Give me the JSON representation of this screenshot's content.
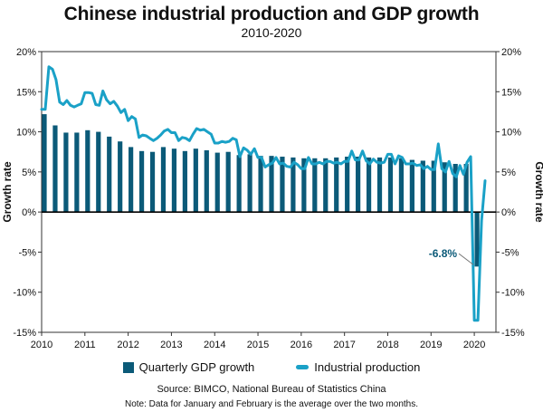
{
  "title": "Chinese industrial production and GDP growth",
  "subtitle": "2010-2020",
  "source": "Source: BIMCO, National Bureau of Statistics China",
  "note": "Note: Data for January and February is the average over the two months.",
  "colors": {
    "gdp": "#0b5a78",
    "industrial": "#1aa1c7",
    "callout": "#0b5a78"
  },
  "chart_data": {
    "type": "bar+line",
    "title": "Chinese industrial production and GDP growth",
    "subtitle": "2010-2020",
    "xlabel": "",
    "ylabel_left": "Growth rate",
    "ylabel_right": "Growth rate",
    "ylim": [
      -15,
      20
    ],
    "xlim": [
      2010,
      2020.5
    ],
    "y_ticks": [
      20,
      15,
      10,
      5,
      0,
      -5,
      -10,
      -15
    ],
    "y_tick_labels": [
      "20%",
      "15%",
      "10%",
      "5%",
      "0%",
      "-5%",
      "-10%",
      "-15%"
    ],
    "x_ticks": [
      2010,
      2011,
      2012,
      2013,
      2014,
      2015,
      2016,
      2017,
      2018,
      2019,
      2020
    ],
    "x_tick_labels": [
      "2010",
      "2011",
      "2012",
      "2013",
      "2014",
      "2015",
      "2016",
      "2017",
      "2018",
      "2019",
      "2020"
    ],
    "legend": {
      "placement": "bottom",
      "entries": [
        "Quarterly GDP growth",
        "Industrial production"
      ]
    },
    "annotation": {
      "text": "-6.8%",
      "x": 2020.0,
      "y": -6.8
    },
    "series": [
      {
        "name": "Quarterly GDP growth",
        "type": "bar",
        "x": [
          2010.0,
          2010.25,
          2010.5,
          2010.75,
          2011.0,
          2011.25,
          2011.5,
          2011.75,
          2012.0,
          2012.25,
          2012.5,
          2012.75,
          2013.0,
          2013.25,
          2013.5,
          2013.75,
          2014.0,
          2014.25,
          2014.5,
          2014.75,
          2015.0,
          2015.25,
          2015.5,
          2015.75,
          2016.0,
          2016.25,
          2016.5,
          2016.75,
          2017.0,
          2017.25,
          2017.5,
          2017.75,
          2018.0,
          2018.25,
          2018.5,
          2018.75,
          2019.0,
          2019.25,
          2019.5,
          2019.75,
          2020.0
        ],
        "values": [
          12.2,
          10.8,
          9.9,
          9.9,
          10.2,
          10.0,
          9.4,
          8.8,
          8.1,
          7.6,
          7.5,
          8.1,
          7.9,
          7.6,
          7.9,
          7.7,
          7.4,
          7.5,
          7.1,
          7.2,
          7.0,
          7.0,
          6.9,
          6.8,
          6.7,
          6.7,
          6.7,
          6.8,
          6.9,
          6.9,
          6.8,
          6.8,
          6.8,
          6.7,
          6.5,
          6.4,
          6.4,
          6.2,
          6.0,
          6.0,
          -6.8
        ]
      },
      {
        "name": "Industrial production",
        "type": "line",
        "x": [
          2010.0,
          2010.083,
          2010.167,
          2010.25,
          2010.333,
          2010.417,
          2010.5,
          2010.583,
          2010.667,
          2010.75,
          2010.833,
          2010.917,
          2011.0,
          2011.083,
          2011.167,
          2011.25,
          2011.333,
          2011.417,
          2011.5,
          2011.583,
          2011.667,
          2011.75,
          2011.833,
          2011.917,
          2012.0,
          2012.083,
          2012.167,
          2012.25,
          2012.333,
          2012.417,
          2012.5,
          2012.583,
          2012.667,
          2012.75,
          2012.833,
          2012.917,
          2013.0,
          2013.083,
          2013.167,
          2013.25,
          2013.333,
          2013.417,
          2013.5,
          2013.583,
          2013.667,
          2013.75,
          2013.833,
          2013.917,
          2014.0,
          2014.083,
          2014.167,
          2014.25,
          2014.333,
          2014.417,
          2014.5,
          2014.583,
          2014.667,
          2014.75,
          2014.833,
          2014.917,
          2015.0,
          2015.083,
          2015.167,
          2015.25,
          2015.333,
          2015.417,
          2015.5,
          2015.583,
          2015.667,
          2015.75,
          2015.833,
          2015.917,
          2016.0,
          2016.083,
          2016.167,
          2016.25,
          2016.333,
          2016.417,
          2016.5,
          2016.583,
          2016.667,
          2016.75,
          2016.833,
          2016.917,
          2017.0,
          2017.083,
          2017.167,
          2017.25,
          2017.333,
          2017.417,
          2017.5,
          2017.583,
          2017.667,
          2017.75,
          2017.833,
          2017.917,
          2018.0,
          2018.083,
          2018.167,
          2018.25,
          2018.333,
          2018.417,
          2018.5,
          2018.583,
          2018.667,
          2018.75,
          2018.833,
          2018.917,
          2019.0,
          2019.083,
          2019.167,
          2019.25,
          2019.333,
          2019.417,
          2019.5,
          2019.583,
          2019.667,
          2019.75,
          2019.833,
          2019.917,
          2020.0,
          2020.083,
          2020.167,
          2020.25
        ],
        "values": [
          12.8,
          12.8,
          18.1,
          17.8,
          16.5,
          13.7,
          13.4,
          13.9,
          13.3,
          13.1,
          13.3,
          13.5,
          14.9,
          14.9,
          14.8,
          13.4,
          13.3,
          15.1,
          14.0,
          13.5,
          13.8,
          13.2,
          12.4,
          12.8,
          11.4,
          11.9,
          11.6,
          9.3,
          9.6,
          9.5,
          9.2,
          8.9,
          9.2,
          9.6,
          10.1,
          10.3,
          9.9,
          9.9,
          8.9,
          9.3,
          9.2,
          8.9,
          9.7,
          10.4,
          10.2,
          10.3,
          10.0,
          9.7,
          8.6,
          8.6,
          8.8,
          8.7,
          8.8,
          9.2,
          9.0,
          6.9,
          8.0,
          7.7,
          7.2,
          7.9,
          6.8,
          6.8,
          5.6,
          5.9,
          6.1,
          6.8,
          6.0,
          6.1,
          5.7,
          5.6,
          6.2,
          5.9,
          5.4,
          5.4,
          6.8,
          6.0,
          6.0,
          6.2,
          6.0,
          6.3,
          6.3,
          6.1,
          6.2,
          6.0,
          6.3,
          6.3,
          7.6,
          6.5,
          6.5,
          7.6,
          6.4,
          6.0,
          6.6,
          6.2,
          6.1,
          6.2,
          7.2,
          7.2,
          6.0,
          7.0,
          6.8,
          6.0,
          6.0,
          6.1,
          5.8,
          5.9,
          5.4,
          5.7,
          5.3,
          5.3,
          8.5,
          5.4,
          5.0,
          6.3,
          4.8,
          4.4,
          5.8,
          4.7,
          6.2,
          6.9,
          -13.5,
          -13.5,
          -1.1,
          3.9
        ]
      }
    ]
  }
}
